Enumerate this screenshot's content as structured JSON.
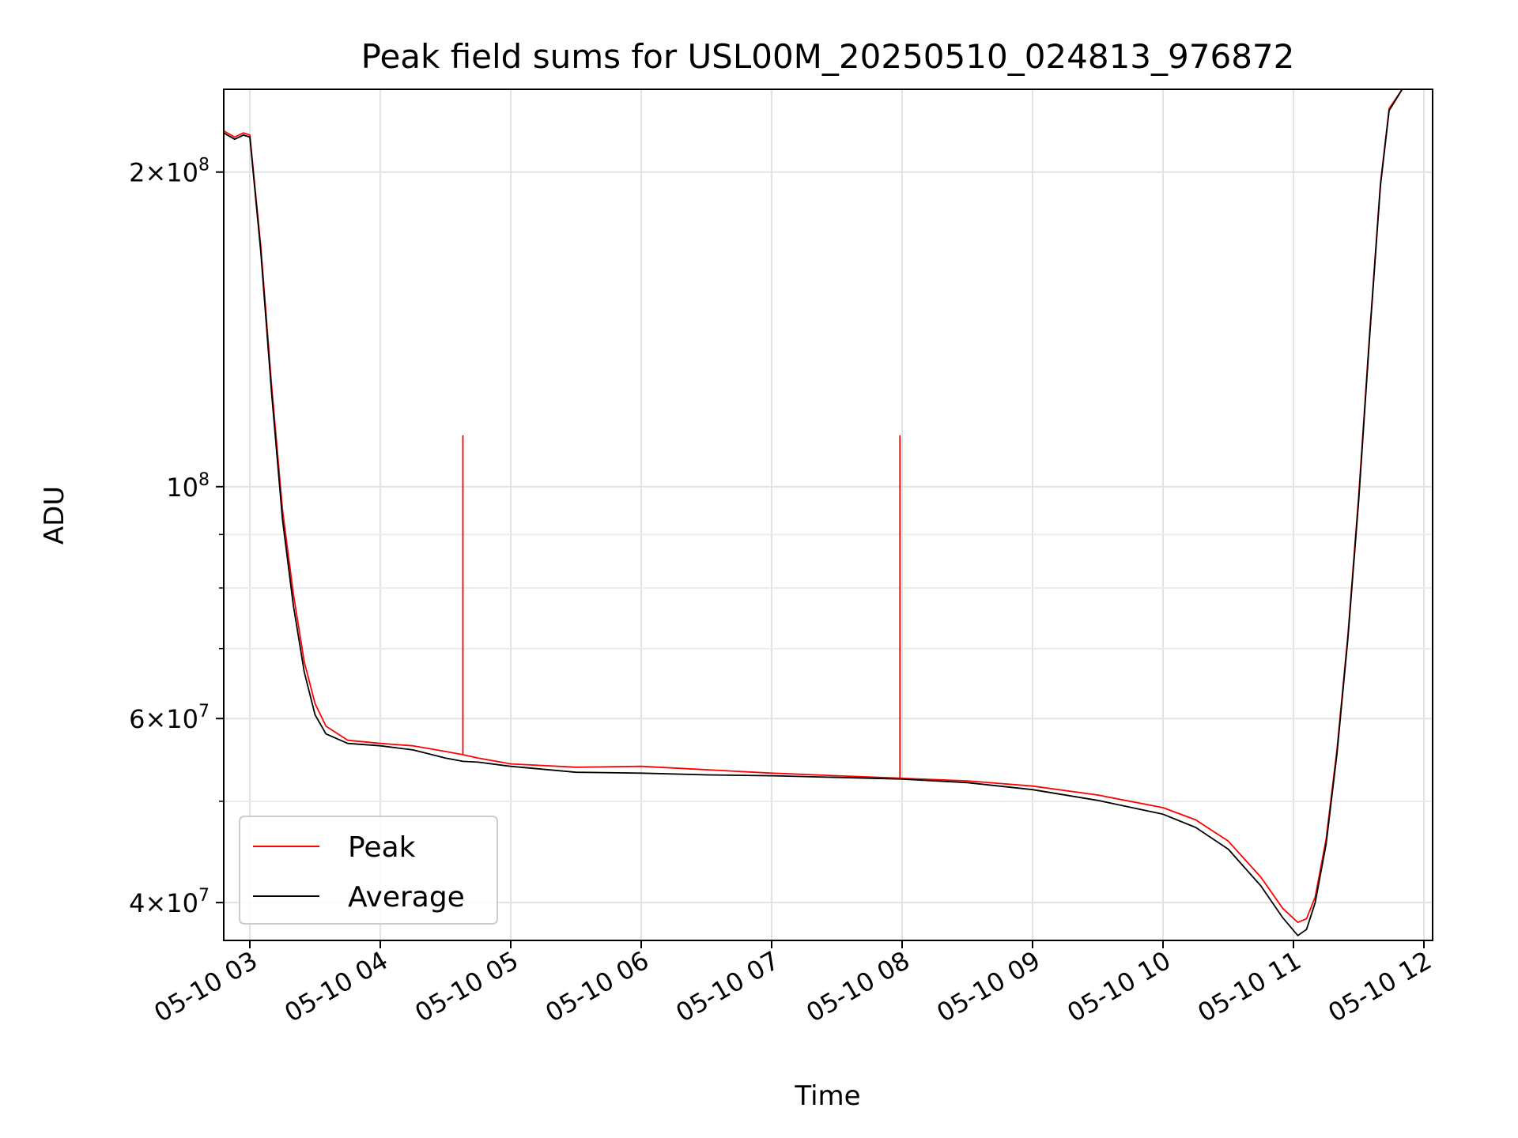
{
  "chart_data": {
    "type": "line",
    "title": "Peak field sums for USL00M_20250510_024813_976872",
    "xlabel": "Time",
    "ylabel": "ADU",
    "y_scale": "log",
    "grid": true,
    "legend_position": "lower-left",
    "xlim": [
      "2025-05-10 02:48",
      "2025-05-10 12:04"
    ],
    "ylim": [
      36800000,
      240000000
    ],
    "x_ticks": [
      "05-10 03",
      "05-10 04",
      "05-10 05",
      "05-10 06",
      "05-10 07",
      "05-10 08",
      "05-10 09",
      "05-10 10",
      "05-10 11",
      "05-10 12"
    ],
    "x_tick_times": [
      "2025-05-10 03:00",
      "2025-05-10 04:00",
      "2025-05-10 05:00",
      "2025-05-10 06:00",
      "2025-05-10 07:00",
      "2025-05-10 08:00",
      "2025-05-10 09:00",
      "2025-05-10 10:00",
      "2025-05-10 11:00",
      "2025-05-10 12:00"
    ],
    "y_ticks": [
      {
        "value": 40000000,
        "mantissa": "4",
        "exponent": "7"
      },
      {
        "value": 60000000,
        "mantissa": "6",
        "exponent": "7"
      },
      {
        "value": 100000000,
        "mantissa": "",
        "exponent": "8"
      },
      {
        "value": 200000000,
        "mantissa": "2",
        "exponent": "8"
      }
    ],
    "y_minor_ticks": [
      50000000,
      70000000,
      80000000,
      90000000
    ],
    "series": [
      {
        "name": "Peak",
        "color": "#ff0000",
        "points": [
          [
            "2025-05-10 02:48",
            219000000
          ],
          [
            "2025-05-10 02:53",
            216000000
          ],
          [
            "2025-05-10 02:57",
            218000000
          ],
          [
            "2025-05-10 03:00",
            217000000
          ],
          [
            "2025-05-10 03:05",
            170000000
          ],
          [
            "2025-05-10 03:10",
            125000000
          ],
          [
            "2025-05-10 03:15",
            95000000
          ],
          [
            "2025-05-10 03:20",
            79000000
          ],
          [
            "2025-05-10 03:25",
            68000000
          ],
          [
            "2025-05-10 03:30",
            62000000
          ],
          [
            "2025-05-10 03:35",
            59000000
          ],
          [
            "2025-05-10 03:45",
            57200000
          ],
          [
            "2025-05-10 04:00",
            56800000
          ],
          [
            "2025-05-10 04:15",
            56500000
          ],
          [
            "2025-05-10 04:30",
            55800000
          ],
          [
            "2025-05-10 04:38",
            55400000
          ],
          [
            "2025-05-10 04:45",
            55000000
          ],
          [
            "2025-05-10 05:00",
            54300000
          ],
          [
            "2025-05-10 05:30",
            53900000
          ],
          [
            "2025-05-10 06:00",
            54000000
          ],
          [
            "2025-05-10 06:30",
            53600000
          ],
          [
            "2025-05-10 07:00",
            53200000
          ],
          [
            "2025-05-10 07:30",
            52900000
          ],
          [
            "2025-05-10 08:00",
            52600000
          ],
          [
            "2025-05-10 08:30",
            52300000
          ],
          [
            "2025-05-10 09:00",
            51700000
          ],
          [
            "2025-05-10 09:30",
            50700000
          ],
          [
            "2025-05-10 10:00",
            49300000
          ],
          [
            "2025-05-10 10:15",
            48000000
          ],
          [
            "2025-05-10 10:30",
            45800000
          ],
          [
            "2025-05-10 10:45",
            42300000
          ],
          [
            "2025-05-10 10:55",
            39500000
          ],
          [
            "2025-05-10 11:02",
            38300000
          ],
          [
            "2025-05-10 11:06",
            38600000
          ],
          [
            "2025-05-10 11:10",
            40500000
          ],
          [
            "2025-05-10 11:15",
            46000000
          ],
          [
            "2025-05-10 11:20",
            56000000
          ],
          [
            "2025-05-10 11:25",
            72000000
          ],
          [
            "2025-05-10 11:30",
            98000000
          ],
          [
            "2025-05-10 11:35",
            140000000
          ],
          [
            "2025-05-10 11:40",
            195000000
          ],
          [
            "2025-05-10 11:44",
            230000000
          ],
          [
            "2025-05-10 11:50",
            240000000
          ]
        ],
        "spikes": [
          {
            "t": "2025-05-10 04:38",
            "value": 112000000
          },
          {
            "t": "2025-05-10 07:59",
            "value": 112000000
          }
        ]
      },
      {
        "name": "Average",
        "color": "#000000",
        "points": [
          [
            "2025-05-10 02:48",
            218000000
          ],
          [
            "2025-05-10 02:53",
            215000000
          ],
          [
            "2025-05-10 02:57",
            217000000
          ],
          [
            "2025-05-10 03:00",
            216000000
          ],
          [
            "2025-05-10 03:05",
            168000000
          ],
          [
            "2025-05-10 03:10",
            123000000
          ],
          [
            "2025-05-10 03:15",
            93000000
          ],
          [
            "2025-05-10 03:20",
            77000000
          ],
          [
            "2025-05-10 03:25",
            66500000
          ],
          [
            "2025-05-10 03:30",
            60500000
          ],
          [
            "2025-05-10 03:35",
            58000000
          ],
          [
            "2025-05-10 03:45",
            56800000
          ],
          [
            "2025-05-10 04:00",
            56500000
          ],
          [
            "2025-05-10 04:15",
            56000000
          ],
          [
            "2025-05-10 04:30",
            55000000
          ],
          [
            "2025-05-10 04:38",
            54600000
          ],
          [
            "2025-05-10 04:45",
            54500000
          ],
          [
            "2025-05-10 05:00",
            54000000
          ],
          [
            "2025-05-10 05:30",
            53300000
          ],
          [
            "2025-05-10 06:00",
            53200000
          ],
          [
            "2025-05-10 06:30",
            53000000
          ],
          [
            "2025-05-10 07:00",
            52900000
          ],
          [
            "2025-05-10 07:30",
            52700000
          ],
          [
            "2025-05-10 08:00",
            52500000
          ],
          [
            "2025-05-10 08:30",
            52100000
          ],
          [
            "2025-05-10 09:00",
            51300000
          ],
          [
            "2025-05-10 09:30",
            50100000
          ],
          [
            "2025-05-10 10:00",
            48600000
          ],
          [
            "2025-05-10 10:15",
            47200000
          ],
          [
            "2025-05-10 10:30",
            45000000
          ],
          [
            "2025-05-10 10:45",
            41500000
          ],
          [
            "2025-05-10 10:55",
            38700000
          ],
          [
            "2025-05-10 11:02",
            37200000
          ],
          [
            "2025-05-10 11:06",
            37700000
          ],
          [
            "2025-05-10 11:10",
            40000000
          ],
          [
            "2025-05-10 11:15",
            45500000
          ],
          [
            "2025-05-10 11:20",
            55500000
          ],
          [
            "2025-05-10 11:25",
            71500000
          ],
          [
            "2025-05-10 11:30",
            97000000
          ],
          [
            "2025-05-10 11:35",
            139000000
          ],
          [
            "2025-05-10 11:40",
            194000000
          ],
          [
            "2025-05-10 11:44",
            229000000
          ],
          [
            "2025-05-10 11:50",
            240000000
          ]
        ]
      }
    ]
  }
}
